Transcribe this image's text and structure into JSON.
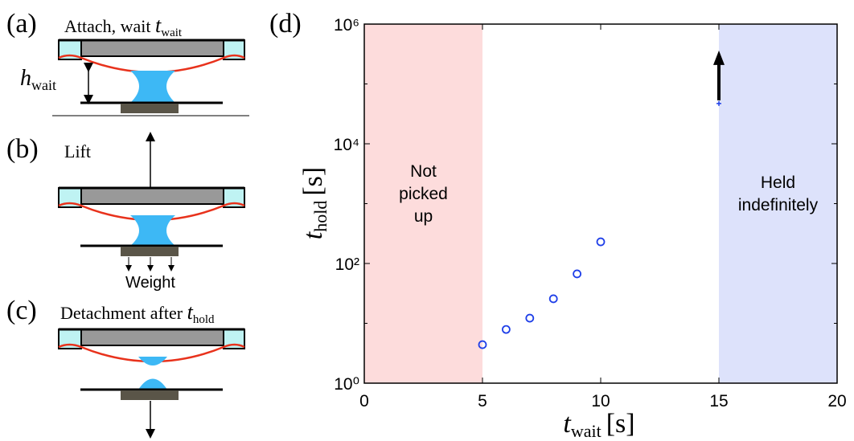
{
  "panels": {
    "a": {
      "letter": "(a)",
      "caption": {
        "text": "Attach, wait ",
        "symbol": "t",
        "subscript": "wait"
      },
      "gap_label": {
        "symbol": "h",
        "subscript": "wait"
      }
    },
    "b": {
      "letter": "(b)",
      "caption": "Lift",
      "load_label": "Weight"
    },
    "c": {
      "letter": "(c)",
      "caption": {
        "text": "Detachment after ",
        "symbol": "t",
        "subscript": "hold"
      }
    }
  },
  "chart_data": {
    "type": "scatter",
    "panel_letter": "(d)",
    "x_label": {
      "symbol": "t",
      "subscript": "wait",
      "unit": "[s]"
    },
    "y_label": {
      "symbol": "t",
      "subscript": "hold",
      "unit": "[s]"
    },
    "x": [
      5,
      6,
      7,
      8,
      9,
      10,
      15
    ],
    "values": [
      4.4,
      7.9,
      12.2,
      25.7,
      67,
      230,
      47000
    ],
    "lower_bound": [
      false,
      false,
      false,
      false,
      false,
      false,
      true
    ],
    "color": "#1f3fe8",
    "xlim": [
      0,
      20
    ],
    "xticks": [
      0,
      5,
      10,
      15,
      20
    ],
    "ylim": [
      1,
      1000000
    ],
    "log_y": true,
    "yticks": [
      {
        "value": 1,
        "label": "10⁰"
      },
      {
        "value": 100,
        "label": "10²"
      },
      {
        "value": 10000,
        "label": "10⁴"
      },
      {
        "value": 1000000,
        "label": "10⁶"
      }
    ],
    "yminor_ticks": [
      10,
      1000,
      100000
    ],
    "regions": [
      {
        "x": [
          0,
          5
        ],
        "color": "#fddcdc",
        "label": [
          "Not",
          "picked",
          "up"
        ]
      },
      {
        "x": [
          15,
          20
        ],
        "color": "#dde2fb",
        "label": [
          "Held",
          "indefinitely"
        ]
      }
    ]
  }
}
